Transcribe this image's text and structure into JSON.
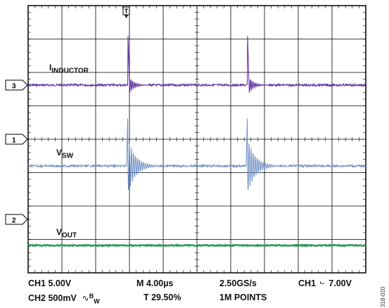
{
  "markers": {
    "ch3": "3",
    "ch1": "1",
    "ch2": "2",
    "trigger": "T"
  },
  "labels": {
    "inductor_main": "I",
    "inductor_sub": "INDUCTOR",
    "vsw_main": "V",
    "vsw_sub": "SW",
    "vout_main": "V",
    "vout_sub": "OUT"
  },
  "status": {
    "ch1_scale": "CH1 5.00V",
    "ch2_scale": "CH2 500mV",
    "bw_symbol": "∿",
    "bw_main": "B",
    "bw_sub": "W",
    "timebase": "M 4.00µs",
    "trigger_pos": "T 29.50%",
    "sample_rate": "2.50GS/s",
    "points": "1M POINTS",
    "trigger_ch": "CH1",
    "trigger_edge": "⌐",
    "trigger_level": "7.00V"
  },
  "figure_id": "318-020",
  "colors": {
    "inductor": "#5b2a9e",
    "vsw": "#6f8fc4",
    "vout": "#2e9a57",
    "grid": "#000000",
    "background": "#ffffff"
  }
}
